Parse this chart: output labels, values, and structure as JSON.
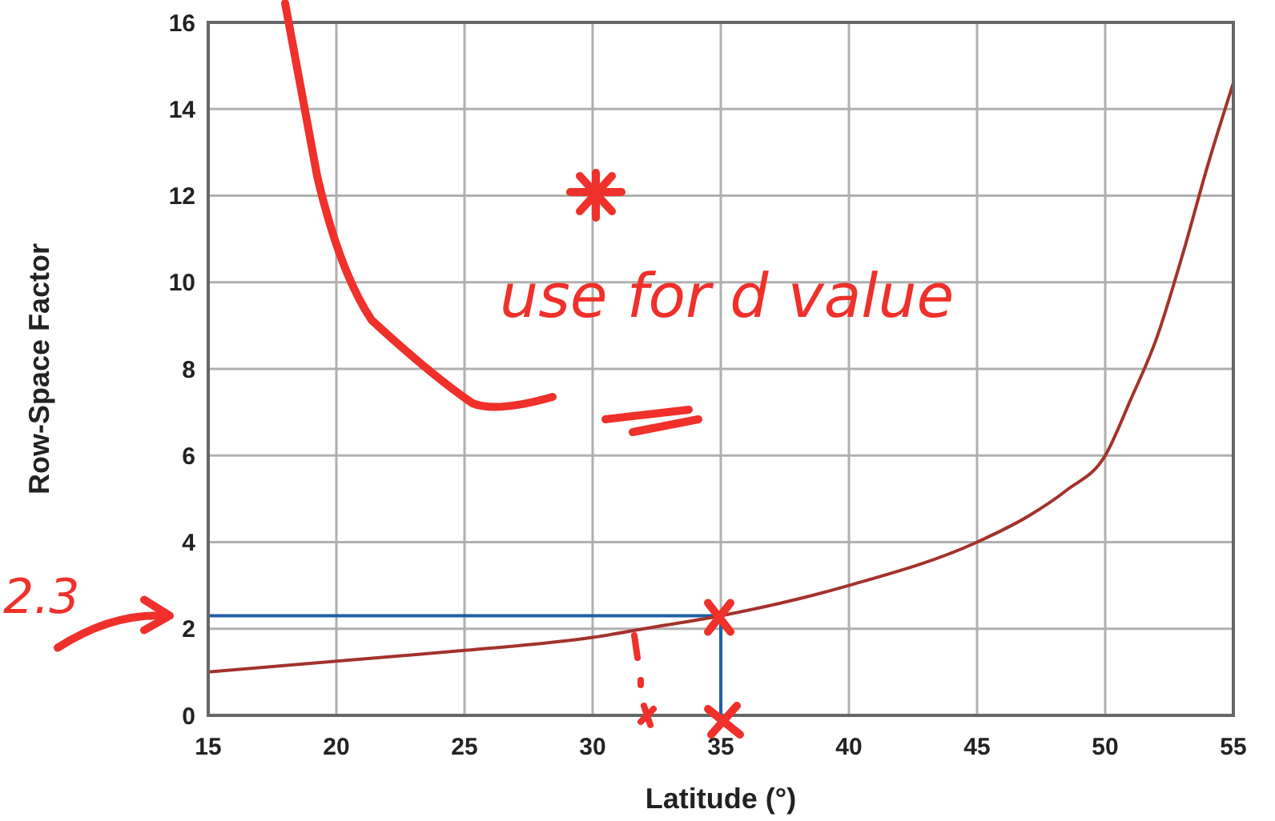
{
  "chart_data": {
    "type": "line",
    "xlabel": "Latitude (°)",
    "ylabel": "Row-Space Factor",
    "x": [
      15,
      20,
      25,
      30,
      32,
      35,
      40,
      45,
      47,
      48.5,
      50,
      51,
      52,
      53,
      54,
      55
    ],
    "series": [
      {
        "color": "#a3322b",
        "values": [
          1.0,
          1.25,
          1.5,
          1.8,
          2.0,
          2.3,
          3.0,
          4.0,
          4.6,
          5.2,
          6.0,
          7.3,
          8.7,
          10.6,
          12.7,
          14.6
        ]
      }
    ],
    "xlim": [
      15,
      55
    ],
    "xticks": [
      15,
      20,
      25,
      30,
      35,
      40,
      45,
      50,
      55
    ],
    "ylim": [
      0,
      16
    ],
    "yticks": [
      0,
      2,
      4,
      6,
      8,
      10,
      12,
      14,
      16
    ],
    "grid": true,
    "marker": "none",
    "line_style": "solid",
    "ref_lines": [
      {
        "axis": "y",
        "value": 2.3,
        "color": "#1f5fa8"
      },
      {
        "axis": "x",
        "value": 35,
        "color": "#1f5fa8"
      }
    ],
    "annotations": [
      "2.3",
      "use for d value"
    ]
  }
}
